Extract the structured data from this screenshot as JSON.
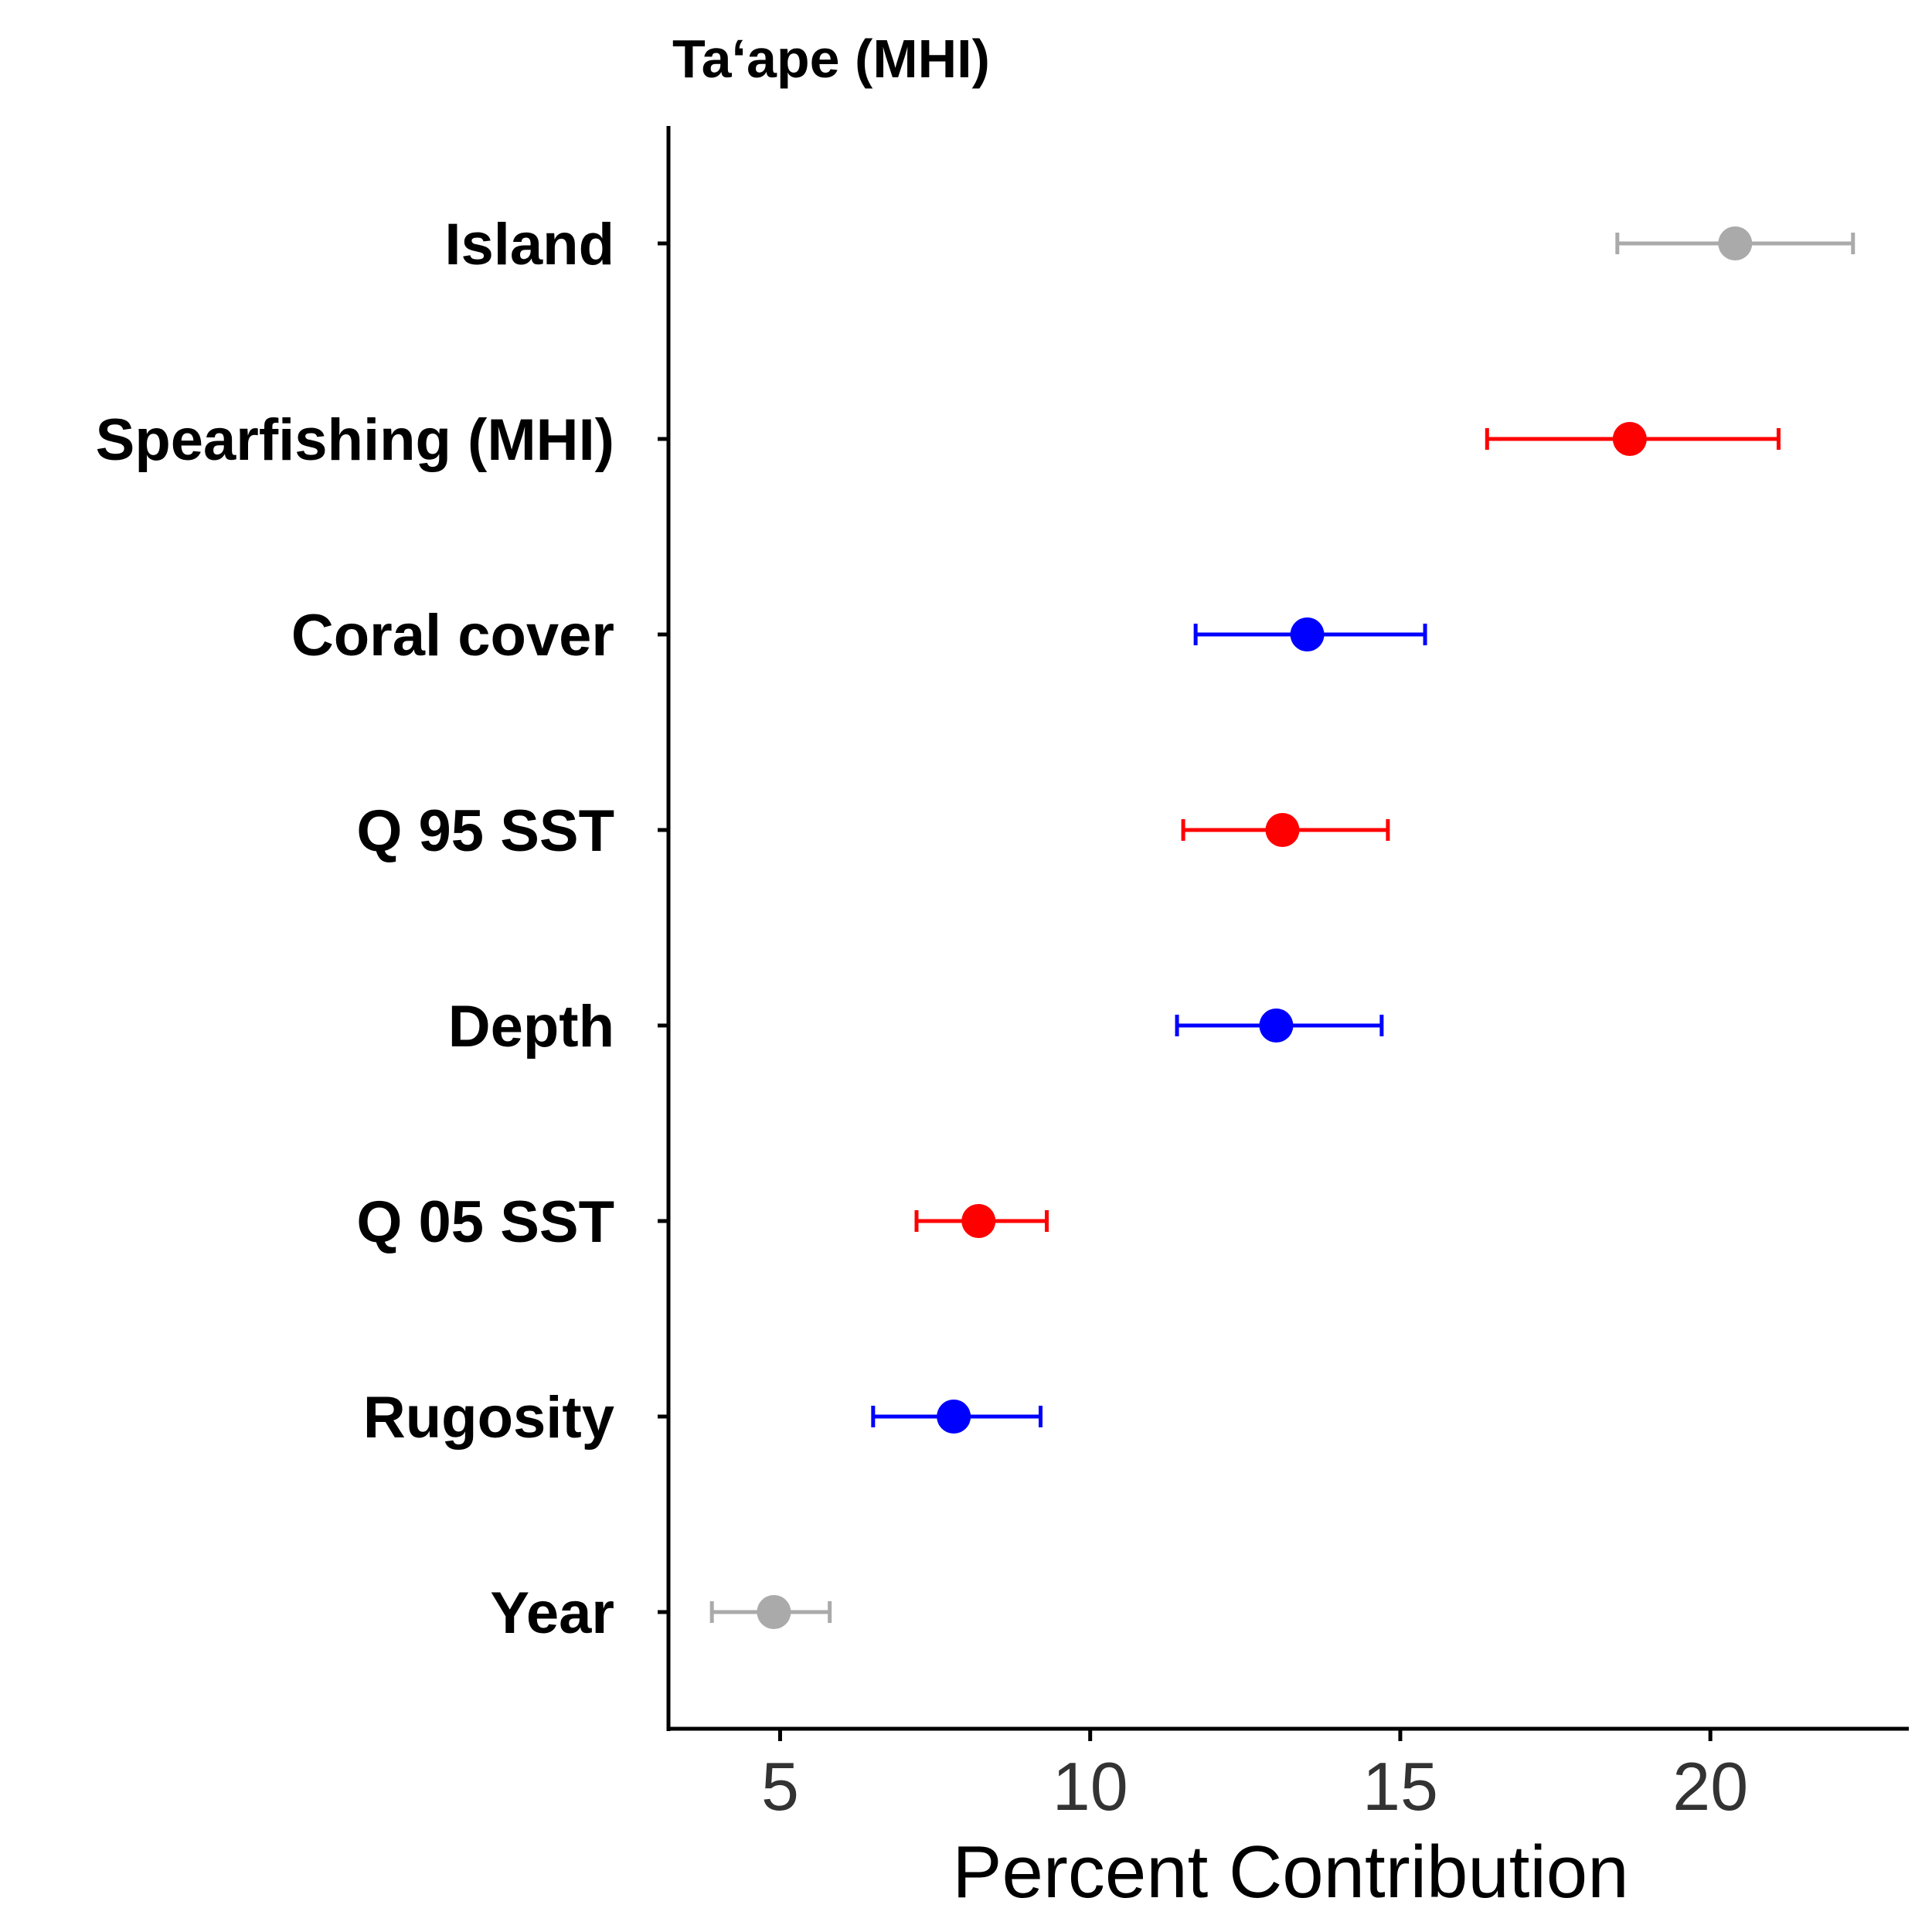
{
  "chart_data": {
    "type": "scatter",
    "title": "Ta‘ape (MHI)",
    "xlabel": "Percent Contribution",
    "ylabel": "",
    "xlim": [
      3.2,
      23.2
    ],
    "xticks": [
      5,
      10,
      15,
      20
    ],
    "xtick_labels": [
      "5",
      "10",
      "15",
      "20"
    ],
    "grid": false,
    "legend": false,
    "categories": [
      "Island",
      "Spearfishing (MHI)",
      "Coral cover",
      "Q 95 SST",
      "Depth",
      "Q 05 SST",
      "Rugosity",
      "Year"
    ],
    "points": [
      {
        "label": "Island",
        "value": 20.4,
        "lower": 18.5,
        "upper": 22.3,
        "color": "#aaaaaa"
      },
      {
        "label": "Spearfishing (MHI)",
        "value": 18.7,
        "lower": 16.4,
        "upper": 21.1,
        "color": "#ff0000"
      },
      {
        "label": "Coral cover",
        "value": 13.5,
        "lower": 11.7,
        "upper": 15.4,
        "color": "#0000ff"
      },
      {
        "label": "Q 95 SST",
        "value": 13.1,
        "lower": 11.5,
        "upper": 14.8,
        "color": "#ff0000"
      },
      {
        "label": "Depth",
        "value": 13.0,
        "lower": 11.4,
        "upper": 14.7,
        "color": "#0000ff"
      },
      {
        "label": "Q 05 SST",
        "value": 8.2,
        "lower": 7.2,
        "upper": 9.3,
        "color": "#ff0000"
      },
      {
        "label": "Rugosity",
        "value": 7.8,
        "lower": 6.5,
        "upper": 9.2,
        "color": "#0000ff"
      },
      {
        "label": "Year",
        "value": 4.9,
        "lower": 3.9,
        "upper": 5.8,
        "color": "#aaaaaa"
      }
    ]
  }
}
